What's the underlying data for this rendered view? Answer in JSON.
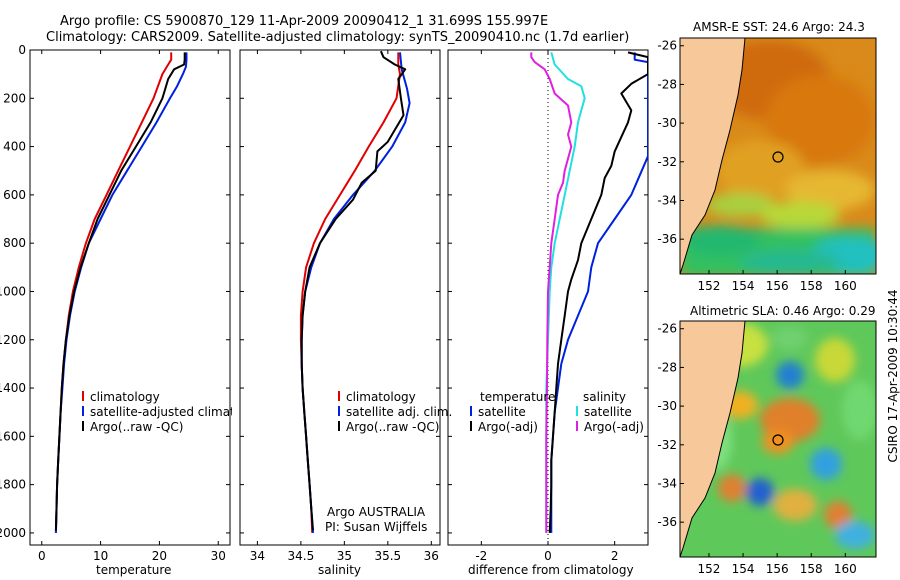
{
  "header": {
    "line1": "Argo profile: CS 5900870_129 11-Apr-2009 20090412_1 31.699S 155.997E",
    "line2": "Climatology: CARS2009. Satellite-adjusted climatology: synTS_20090410.nc (1.7d earlier)"
  },
  "side_label": "CSIRO 17-Apr-2009 10:30:44",
  "footer_note": {
    "line1": "Argo AUSTRALIA",
    "line2": "PI: Susan Wijffels"
  },
  "colors": {
    "climatology": "#e00000",
    "satellite": "#0020e0",
    "argo": "#000000",
    "sal_sat": "#20e0e0",
    "sal_argo": "#e020e0",
    "land": "#f6c89a"
  },
  "chart_data": [
    {
      "type": "line",
      "xlabel": "temperature",
      "ylabel": "",
      "xlim": [
        -2,
        32
      ],
      "ylim": [
        2050,
        0
      ],
      "xticks": [
        0,
        10,
        20,
        30
      ],
      "yticks": [
        0,
        200,
        400,
        600,
        800,
        1000,
        1200,
        1400,
        1600,
        1800,
        2000
      ],
      "legend": [
        "climatology",
        "satellite-adjusted climatology",
        "Argo(..raw -QC)"
      ],
      "series": [
        {
          "name": "climatology",
          "color": "#e00000",
          "points": [
            [
              22.0,
              10
            ],
            [
              22.0,
              40
            ],
            [
              21.5,
              60
            ],
            [
              20.5,
              100
            ],
            [
              19.0,
              200
            ],
            [
              17.0,
              300
            ],
            [
              15.0,
              400
            ],
            [
              13.0,
              500
            ],
            [
              11.0,
              600
            ],
            [
              9.0,
              700
            ],
            [
              7.5,
              800
            ],
            [
              6.3,
              900
            ],
            [
              5.3,
              1000
            ],
            [
              4.6,
              1100
            ],
            [
              4.1,
              1200
            ],
            [
              3.7,
              1300
            ],
            [
              3.4,
              1400
            ],
            [
              3.2,
              1500
            ],
            [
              3.0,
              1600
            ],
            [
              2.8,
              1700
            ],
            [
              2.6,
              1800
            ],
            [
              2.5,
              1900
            ],
            [
              2.4,
              2000
            ]
          ]
        },
        {
          "name": "satellite-adjusted climatology",
          "color": "#0020e0",
          "points": [
            [
              24.6,
              10
            ],
            [
              24.6,
              40
            ],
            [
              24.5,
              70
            ],
            [
              24.0,
              100
            ],
            [
              23.0,
              150
            ],
            [
              21.8,
              200
            ],
            [
              19.5,
              300
            ],
            [
              17.0,
              400
            ],
            [
              14.5,
              500
            ],
            [
              12.0,
              600
            ],
            [
              10.0,
              700
            ],
            [
              8.0,
              800
            ],
            [
              6.7,
              900
            ],
            [
              5.6,
              1000
            ],
            [
              4.8,
              1100
            ],
            [
              4.2,
              1200
            ],
            [
              3.8,
              1300
            ],
            [
              3.5,
              1400
            ],
            [
              3.2,
              1500
            ],
            [
              3.0,
              1600
            ],
            [
              2.8,
              1700
            ],
            [
              2.6,
              1800
            ],
            [
              2.5,
              1900
            ],
            [
              2.4,
              2000
            ]
          ]
        },
        {
          "name": "Argo(..raw -QC)",
          "color": "#000000",
          "points": [
            [
              24.3,
              10
            ],
            [
              24.3,
              40
            ],
            [
              24.2,
              60
            ],
            [
              22.5,
              80
            ],
            [
              21.5,
              120
            ],
            [
              20.5,
              200
            ],
            [
              18.5,
              300
            ],
            [
              16.0,
              400
            ],
            [
              13.5,
              500
            ],
            [
              11.5,
              600
            ],
            [
              9.5,
              700
            ],
            [
              8.0,
              800
            ],
            [
              6.6,
              900
            ],
            [
              5.5,
              1000
            ],
            [
              4.7,
              1100
            ],
            [
              4.1,
              1200
            ],
            [
              3.7,
              1300
            ],
            [
              3.4,
              1400
            ],
            [
              3.2,
              1500
            ],
            [
              3.0,
              1600
            ],
            [
              2.8,
              1700
            ],
            [
              2.6,
              1800
            ],
            [
              2.5,
              1900
            ],
            [
              2.4,
              1990
            ]
          ]
        }
      ]
    },
    {
      "type": "line",
      "xlabel": "salinity",
      "ylabel": "",
      "xlim": [
        33.8,
        36.1
      ],
      "ylim": [
        2050,
        0
      ],
      "xticks": [
        34,
        34.5,
        35,
        35.5,
        36
      ],
      "legend": [
        "climatology",
        "satellite adj. clim.",
        "Argo(..raw -QC)"
      ],
      "series": [
        {
          "name": "climatology",
          "color": "#e00000",
          "points": [
            [
              35.62,
              10
            ],
            [
              35.62,
              60
            ],
            [
              35.64,
              100
            ],
            [
              35.6,
              200
            ],
            [
              35.45,
              300
            ],
            [
              35.28,
              400
            ],
            [
              35.12,
              500
            ],
            [
              34.95,
              600
            ],
            [
              34.78,
              700
            ],
            [
              34.65,
              800
            ],
            [
              34.56,
              900
            ],
            [
              34.52,
              1000
            ],
            [
              34.5,
              1100
            ],
            [
              34.5,
              1200
            ],
            [
              34.51,
              1300
            ],
            [
              34.52,
              1400
            ],
            [
              34.54,
              1500
            ],
            [
              34.56,
              1600
            ],
            [
              34.58,
              1700
            ],
            [
              34.6,
              1800
            ],
            [
              34.62,
              1900
            ],
            [
              34.63,
              2000
            ]
          ]
        },
        {
          "name": "satellite adj. clim.",
          "color": "#0020e0",
          "points": [
            [
              35.64,
              10
            ],
            [
              35.66,
              80
            ],
            [
              35.72,
              160
            ],
            [
              35.75,
              220
            ],
            [
              35.7,
              300
            ],
            [
              35.55,
              400
            ],
            [
              35.35,
              500
            ],
            [
              35.1,
              600
            ],
            [
              34.88,
              700
            ],
            [
              34.72,
              800
            ],
            [
              34.62,
              900
            ],
            [
              34.55,
              1000
            ],
            [
              34.52,
              1100
            ],
            [
              34.51,
              1200
            ],
            [
              34.51,
              1300
            ],
            [
              34.52,
              1400
            ],
            [
              34.54,
              1500
            ],
            [
              34.56,
              1600
            ],
            [
              34.58,
              1700
            ],
            [
              34.6,
              1800
            ],
            [
              34.62,
              1900
            ],
            [
              34.64,
              2000
            ]
          ]
        },
        {
          "name": "Argo(..raw -QC)",
          "color": "#000000",
          "points": [
            [
              35.42,
              5
            ],
            [
              35.45,
              30
            ],
            [
              35.58,
              60
            ],
            [
              35.7,
              80
            ],
            [
              35.62,
              120
            ],
            [
              35.65,
              200
            ],
            [
              35.68,
              270
            ],
            [
              35.5,
              380
            ],
            [
              35.38,
              420
            ],
            [
              35.36,
              500
            ],
            [
              35.2,
              550
            ],
            [
              35.1,
              620
            ],
            [
              34.9,
              700
            ],
            [
              34.72,
              800
            ],
            [
              34.6,
              900
            ],
            [
              34.55,
              1000
            ],
            [
              34.52,
              1100
            ],
            [
              34.51,
              1200
            ],
            [
              34.51,
              1300
            ],
            [
              34.52,
              1400
            ],
            [
              34.54,
              1500
            ],
            [
              34.56,
              1600
            ],
            [
              34.58,
              1700
            ],
            [
              34.6,
              1800
            ],
            [
              34.62,
              1900
            ],
            [
              34.64,
              1990
            ]
          ]
        }
      ]
    },
    {
      "type": "line",
      "xlabel": "difference from climatology",
      "ylabel": "",
      "xlim": [
        -3,
        3
      ],
      "ylim": [
        2050,
        0
      ],
      "xticks": [
        -2,
        0,
        2
      ],
      "legend_temperature": {
        "title": "temperature",
        "items": [
          "satellite",
          "Argo(-adj)"
        ]
      },
      "legend_salinity": {
        "title": "salinity",
        "items": [
          "satellite",
          "Argo(-adj)"
        ]
      },
      "series": [
        {
          "name": "temperature satellite",
          "color": "#0020e0",
          "points": [
            [
              2.6,
              10
            ],
            [
              2.6,
              40
            ],
            [
              3.0,
              50
            ],
            [
              3.0,
              440
            ],
            [
              2.5,
              600
            ],
            [
              2.0,
              700
            ],
            [
              1.5,
              800
            ],
            [
              1.3,
              900
            ],
            [
              1.2,
              1000
            ],
            [
              0.9,
              1100
            ],
            [
              0.6,
              1200
            ],
            [
              0.4,
              1300
            ],
            [
              0.3,
              1400
            ],
            [
              0.2,
              1500
            ],
            [
              0.15,
              1600
            ],
            [
              0.1,
              1700
            ],
            [
              0.1,
              1800
            ],
            [
              0.1,
              1900
            ],
            [
              0.1,
              2000
            ]
          ]
        },
        {
          "name": "temperature Argo(-adj)",
          "color": "#000000",
          "points": [
            [
              2.4,
              10
            ],
            [
              3.0,
              30
            ],
            [
              3.0,
              100
            ],
            [
              2.5,
              140
            ],
            [
              2.2,
              180
            ],
            [
              2.5,
              250
            ],
            [
              2.4,
              300
            ],
            [
              2.0,
              420
            ],
            [
              1.9,
              480
            ],
            [
              1.7,
              530
            ],
            [
              1.6,
              600
            ],
            [
              1.3,
              700
            ],
            [
              1.0,
              800
            ],
            [
              0.9,
              870
            ],
            [
              0.7,
              950
            ],
            [
              0.6,
              1000
            ],
            [
              0.5,
              1100
            ],
            [
              0.4,
              1200
            ],
            [
              0.3,
              1300
            ],
            [
              0.25,
              1400
            ],
            [
              0.2,
              1500
            ],
            [
              0.15,
              1600
            ],
            [
              0.1,
              1700
            ],
            [
              0.1,
              1800
            ],
            [
              0.08,
              1900
            ],
            [
              0.05,
              2000
            ]
          ]
        },
        {
          "name": "salinity satellite",
          "color": "#20e0e0",
          "points": [
            [
              0.1,
              10
            ],
            [
              0.2,
              60
            ],
            [
              0.6,
              120
            ],
            [
              1.0,
              150
            ],
            [
              1.1,
              200
            ],
            [
              1.0,
              250
            ],
            [
              0.9,
              300
            ],
            [
              0.8,
              400
            ],
            [
              0.65,
              500
            ],
            [
              0.5,
              600
            ],
            [
              0.35,
              700
            ],
            [
              0.2,
              800
            ],
            [
              0.1,
              900
            ],
            [
              0.05,
              1000
            ],
            [
              0.0,
              1200
            ],
            [
              -0.05,
              1400
            ],
            [
              -0.05,
              1600
            ],
            [
              -0.05,
              1800
            ],
            [
              -0.05,
              2000
            ]
          ]
        },
        {
          "name": "salinity Argo(-adj)",
          "color": "#e020e0",
          "points": [
            [
              -0.5,
              10
            ],
            [
              -0.5,
              30
            ],
            [
              -0.4,
              50
            ],
            [
              -0.1,
              80
            ],
            [
              0.05,
              120
            ],
            [
              0.2,
              180
            ],
            [
              0.6,
              230
            ],
            [
              0.7,
              300
            ],
            [
              0.6,
              350
            ],
            [
              0.7,
              400
            ],
            [
              0.6,
              450
            ],
            [
              0.5,
              500
            ],
            [
              0.45,
              550
            ],
            [
              0.3,
              600
            ],
            [
              0.2,
              700
            ],
            [
              0.1,
              800
            ],
            [
              0.05,
              900
            ],
            [
              0.0,
              1000
            ],
            [
              -0.02,
              1200
            ],
            [
              -0.03,
              1400
            ],
            [
              -0.05,
              1600
            ],
            [
              -0.05,
              1800
            ],
            [
              -0.05,
              2000
            ]
          ]
        }
      ]
    },
    {
      "type": "heatmap",
      "title": "AMSR-E SST: 24.6 Argo: 24.3",
      "xticks": [
        152,
        154,
        156,
        158,
        160
      ],
      "yticks": [
        -26,
        -28,
        -30,
        -32,
        -34,
        -36
      ],
      "xlim": [
        150.3,
        161.8
      ],
      "ylim": [
        -37.8,
        -25.6
      ],
      "argo_position": [
        155.997,
        -31.699
      ]
    },
    {
      "type": "heatmap",
      "title": "Altimetric SLA: 0.46 Argo: 0.29",
      "xticks": [
        152,
        154,
        156,
        158,
        160
      ],
      "yticks": [
        -26,
        -28,
        -30,
        -32,
        -34,
        -36
      ],
      "xlim": [
        150.3,
        161.8
      ],
      "ylim": [
        -37.8,
        -25.6
      ],
      "argo_position": [
        155.997,
        -31.699
      ]
    }
  ]
}
